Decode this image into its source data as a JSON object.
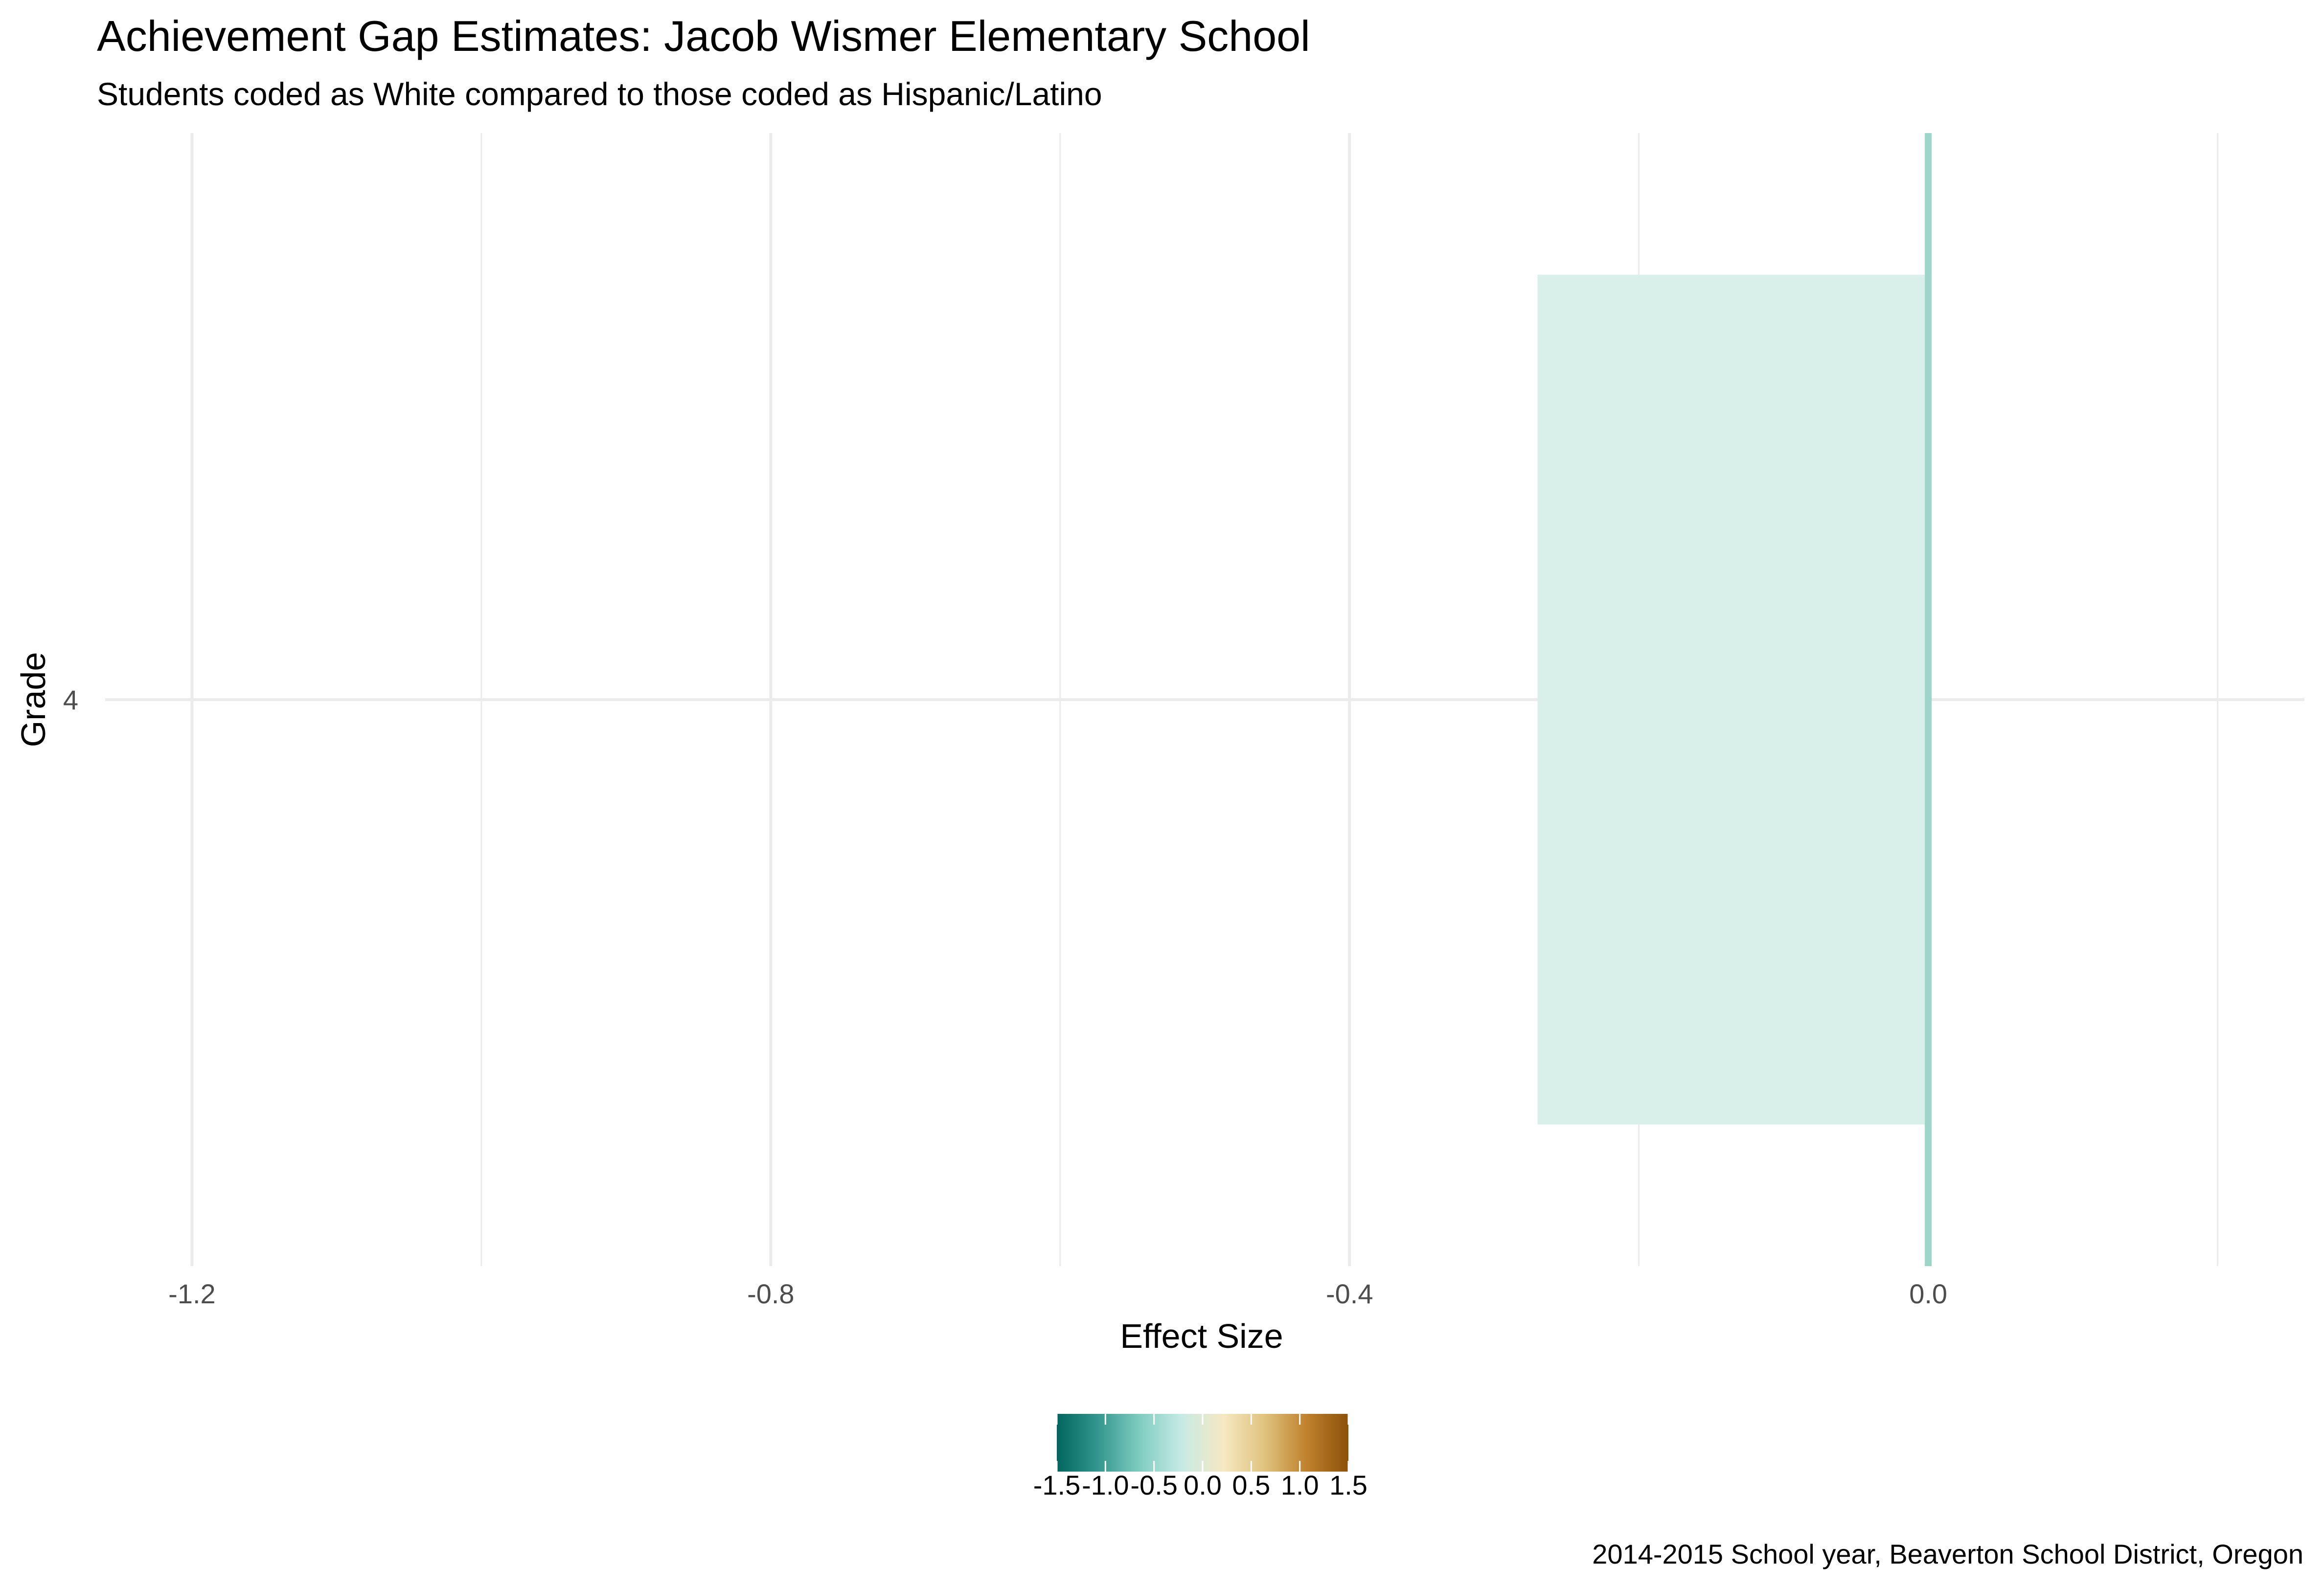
{
  "chart_data": {
    "type": "bar",
    "orientation": "horizontal",
    "title": "Achievement Gap Estimates: Jacob Wismer Elementary School",
    "subtitle": "Students coded as White compared to those coded as Hispanic/Latino",
    "caption": "2014-2015 School year, Beaverton School District, Oregon",
    "xlabel": "Effect Size",
    "ylabel": "Grade",
    "categories": [
      "4"
    ],
    "values": [
      -0.27
    ],
    "xlim": [
      -1.26,
      0.26
    ],
    "x_ticks": [
      -1.2,
      -0.8,
      -0.4,
      0.0
    ],
    "x_tick_labels": [
      "-1.2",
      "-0.8",
      "-0.4",
      "0.0"
    ],
    "reference_line": 0.0,
    "grid": true,
    "bar_color": "#d9f0ea",
    "reference_line_color": "#9dd6c8",
    "grid_color": "#ebebeb",
    "legend": {
      "placement": "bottom",
      "type": "colorbar",
      "range": [
        -1.5,
        1.5
      ],
      "ticks": [
        -1.5,
        -1.0,
        -0.5,
        0.0,
        0.5,
        1.0,
        1.5
      ],
      "tick_labels": [
        "-1.5",
        "-1.0",
        "-0.5",
        "0.0",
        "0.5",
        "1.0",
        "1.5"
      ],
      "colors": [
        "#01665e",
        "#35978f",
        "#80cdc1",
        "#c7eae5",
        "#f6e8c3",
        "#dfc27d",
        "#bf812d",
        "#8c510a"
      ]
    }
  }
}
